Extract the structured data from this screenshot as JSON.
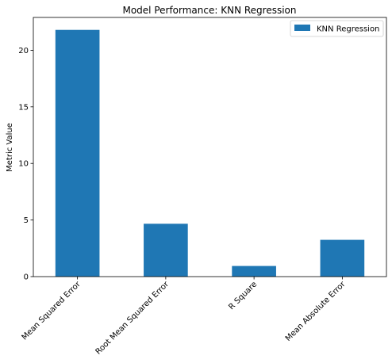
{
  "chart_data": {
    "type": "bar",
    "title": "Model Performance: KNN Regression",
    "xlabel": "",
    "ylabel": "Metric Value",
    "categories": [
      "Mean Squared Error",
      "Root Mean Squared Error",
      "R Square",
      "Mean Absolute Error"
    ],
    "series": [
      {
        "name": "KNN Regression",
        "values": [
          21.8,
          4.67,
          0.94,
          3.25
        ],
        "color": "#1f77b4"
      }
    ],
    "yticks": [
      0,
      5,
      10,
      15,
      20
    ],
    "ylim": [
      0,
      22.9
    ],
    "grid": false,
    "legend_position": "top-right"
  }
}
